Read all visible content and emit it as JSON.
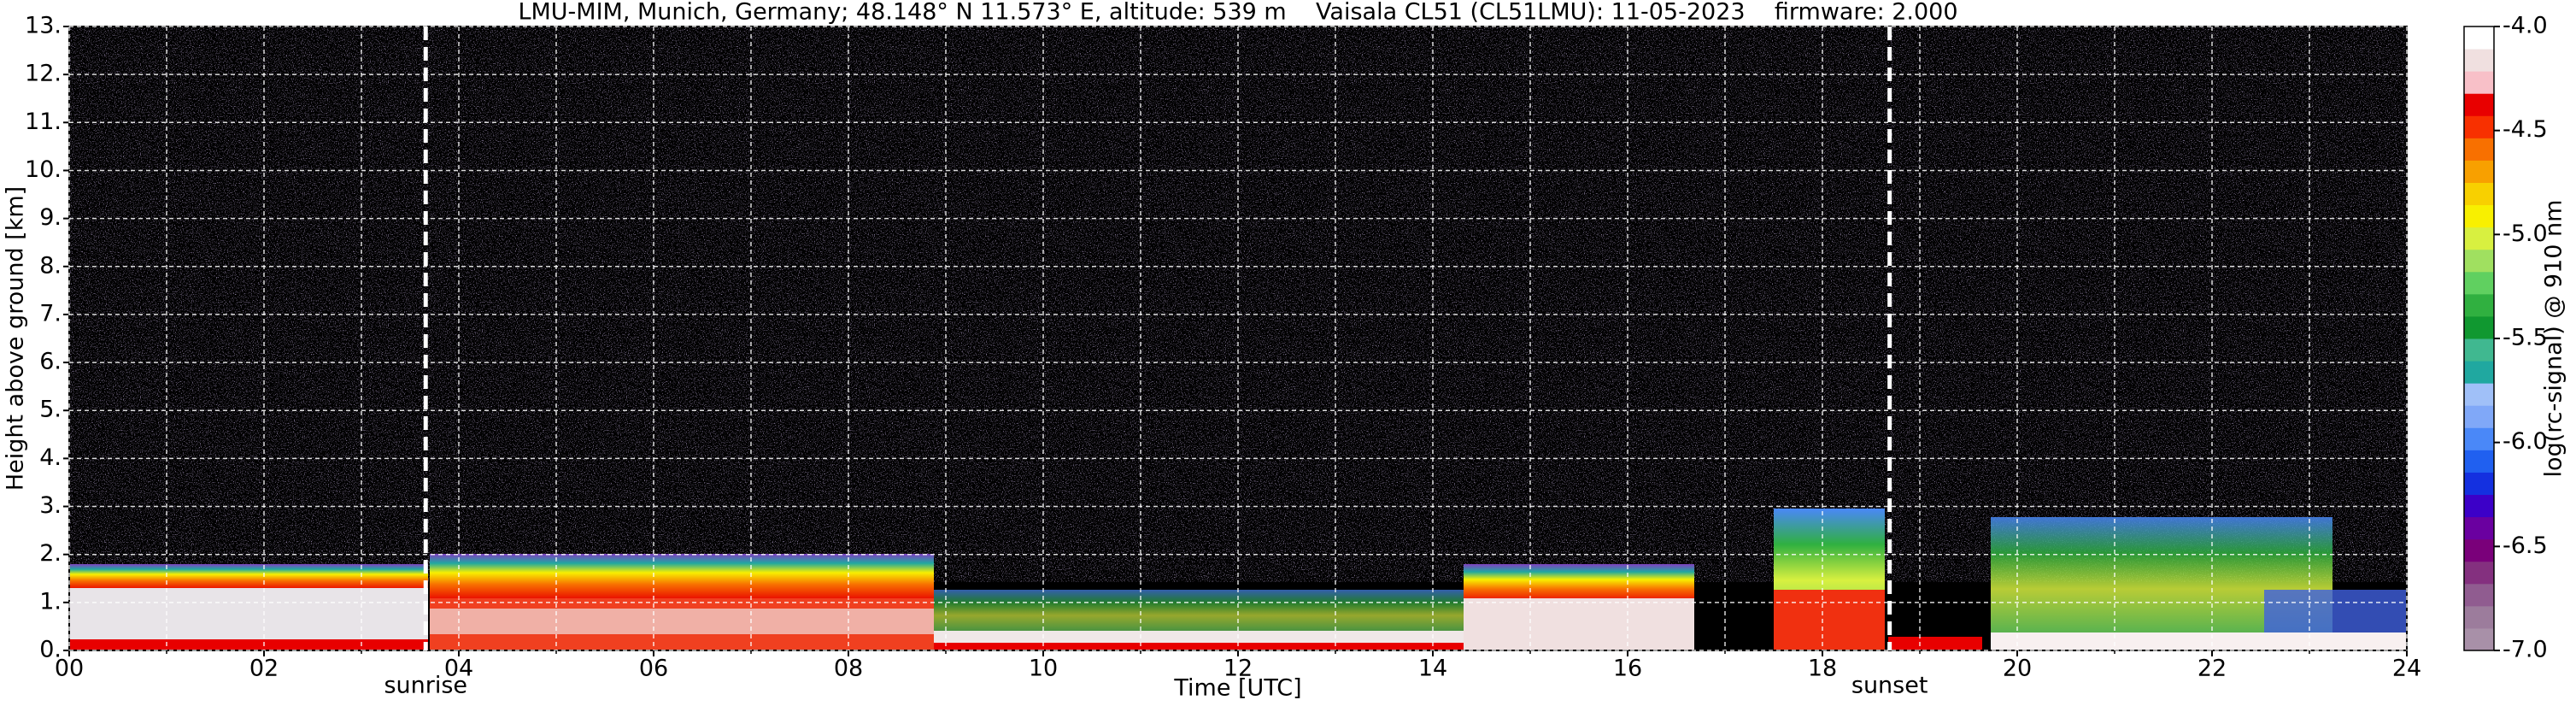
{
  "chart_data": {
    "type": "heatmap",
    "title": "LMU-MIM, Munich, Germany; 48.148° N 11.573° E, altitude: 539 m    Vaisala CL51 (CL51LMU): 11-05-2023    firmware: 2.000",
    "xlabel": "Time [UTC]",
    "ylabel": "Height above ground [km]",
    "xlim": [
      0,
      24
    ],
    "xticks": [
      {
        "value": 0,
        "label": "00"
      },
      {
        "value": 2,
        "label": "02"
      },
      {
        "value": 4,
        "label": "04"
      },
      {
        "value": 6,
        "label": "06"
      },
      {
        "value": 8,
        "label": "08"
      },
      {
        "value": 10,
        "label": "10"
      },
      {
        "value": 12,
        "label": "12"
      },
      {
        "value": 14,
        "label": "14"
      },
      {
        "value": 16,
        "label": "16"
      },
      {
        "value": 18,
        "label": "18"
      },
      {
        "value": 20,
        "label": "20"
      },
      {
        "value": 22,
        "label": "22"
      },
      {
        "value": 24,
        "label": "24"
      }
    ],
    "xminorticks": [
      1,
      3,
      5,
      7,
      9,
      11,
      13,
      15,
      17,
      19,
      21,
      23
    ],
    "ylim": [
      0,
      13
    ],
    "yticks": [
      {
        "value": 0,
        "label": "0."
      },
      {
        "value": 1,
        "label": "1."
      },
      {
        "value": 2,
        "label": "2."
      },
      {
        "value": 3,
        "label": "3."
      },
      {
        "value": 4,
        "label": "4."
      },
      {
        "value": 5,
        "label": "5."
      },
      {
        "value": 6,
        "label": "6."
      },
      {
        "value": 7,
        "label": "7."
      },
      {
        "value": 8,
        "label": "8."
      },
      {
        "value": 9,
        "label": "9."
      },
      {
        "value": 10,
        "label": "10."
      },
      {
        "value": 11,
        "label": "11."
      },
      {
        "value": 12,
        "label": "12."
      },
      {
        "value": 13,
        "label": "13."
      }
    ],
    "grid": true,
    "annotations": [
      {
        "label": "sunrise",
        "x": 3.66
      },
      {
        "label": "sunset",
        "x": 18.69
      }
    ],
    "colorbar": {
      "label": "log(rc-signal) @ 910 nm",
      "lim": [
        -7.0,
        -4.0
      ],
      "ticks": [
        {
          "value": -7.0,
          "label": "-7.0"
        },
        {
          "value": -6.5,
          "label": "-6.5"
        },
        {
          "value": -6.0,
          "label": "-6.0"
        },
        {
          "value": -5.5,
          "label": "-5.5"
        },
        {
          "value": -5.0,
          "label": "-5.0"
        },
        {
          "value": -4.5,
          "label": "-4.5"
        },
        {
          "value": -4.0,
          "label": "-4.0"
        }
      ],
      "colors": [
        "#a890a8",
        "#9c7c9c",
        "#905c90",
        "#84307f",
        "#7a007a",
        "#6a00a0",
        "#3c00c8",
        "#1430e0",
        "#2060f0",
        "#4a88f8",
        "#80a8f8",
        "#a0c0f8",
        "#20a8a0",
        "#40b890",
        "#109830",
        "#30b040",
        "#60d060",
        "#a0e060",
        "#d8f040",
        "#f8f000",
        "#f8d000",
        "#f8a000",
        "#f87000",
        "#f83000",
        "#e80000",
        "#f8c0c8",
        "#f0e0e0",
        "#ffffff"
      ]
    }
  }
}
